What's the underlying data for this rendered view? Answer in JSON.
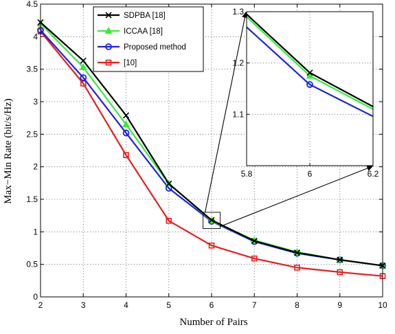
{
  "chart_data": [
    {
      "type": "line",
      "xlabel": "Number of Pairs",
      "ylabel": "Max−Min Rate (bit/s/Hz)",
      "xlim": [
        2,
        10
      ],
      "ylim": [
        0,
        4.5
      ],
      "x_ticks": [
        "2",
        "3",
        "4",
        "5",
        "6",
        "7",
        "8",
        "9",
        "10"
      ],
      "y_ticks": [
        "0",
        "0.5",
        "1",
        "1.5",
        "2",
        "2.5",
        "3",
        "3.5",
        "4",
        "4.5"
      ],
      "grid": true,
      "legend_position": "top-left",
      "x": [
        2,
        3,
        4,
        5,
        6,
        7,
        8,
        9,
        10
      ],
      "series": [
        {
          "name": "SDPBA [18]",
          "color": "#000000",
          "marker": "x",
          "values": [
            4.22,
            3.63,
            2.79,
            1.74,
            1.18,
            0.86,
            0.68,
            0.57,
            0.48
          ]
        },
        {
          "name": "ICCAA [18]",
          "color": "#33ee33",
          "marker": "triangle",
          "values": [
            4.2,
            3.53,
            2.65,
            1.74,
            1.17,
            0.87,
            0.69,
            0.57,
            0.48
          ]
        },
        {
          "name": "Proposed method",
          "color": "#1f1fe6",
          "marker": "circle",
          "values": [
            4.1,
            3.37,
            2.52,
            1.67,
            1.16,
            0.85,
            0.67,
            0.57,
            0.48
          ]
        },
        {
          "name": "[10]",
          "color": "#e61f1f",
          "marker": "square",
          "values": [
            4.08,
            3.28,
            2.18,
            1.17,
            0.79,
            0.59,
            0.45,
            0.38,
            0.32
          ]
        }
      ],
      "zoom_region": {
        "x": [
          5.8,
          6.2
        ],
        "y": [
          1.05,
          1.3
        ]
      }
    },
    {
      "type": "line",
      "role": "inset",
      "xlim": [
        5.8,
        6.2
      ],
      "ylim": [
        1.0,
        1.3
      ],
      "x_ticks": [
        "5.8",
        "6",
        "6.2"
      ],
      "y_ticks": [
        "1.1",
        "1.2",
        "1.3"
      ],
      "grid": true,
      "x": [
        5.8,
        6.0,
        6.2
      ],
      "series": [
        {
          "name": "SDPBA [18]",
          "color": "#000000",
          "marker": "x",
          "values": [
            1.295,
            1.181,
            1.115
          ]
        },
        {
          "name": "ICCAA [18]",
          "color": "#33ee33",
          "marker": "triangle",
          "values": [
            1.29,
            1.175,
            1.11
          ]
        },
        {
          "name": "Proposed method",
          "color": "#1f1fe6",
          "marker": "circle",
          "values": [
            1.27,
            1.158,
            1.096
          ]
        }
      ]
    }
  ]
}
